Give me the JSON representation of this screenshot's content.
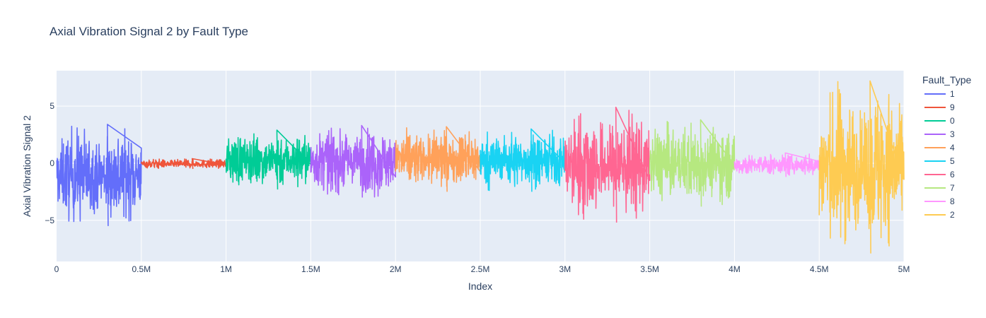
{
  "chart_data": {
    "type": "line",
    "title": "Axial Vibration Signal 2 by Fault Type",
    "xlabel": "Index",
    "ylabel": "Axial Vibration Signal 2",
    "xlim": [
      0,
      5000000
    ],
    "ylim": [
      -8.6,
      8.1
    ],
    "x_ticks": [
      {
        "value": 0,
        "label": "0"
      },
      {
        "value": 500000,
        "label": "0.5M"
      },
      {
        "value": 1000000,
        "label": "1M"
      },
      {
        "value": 1500000,
        "label": "1.5M"
      },
      {
        "value": 2000000,
        "label": "2M"
      },
      {
        "value": 2500000,
        "label": "2.5M"
      },
      {
        "value": 3000000,
        "label": "3M"
      },
      {
        "value": 3500000,
        "label": "3.5M"
      },
      {
        "value": 4000000,
        "label": "4M"
      },
      {
        "value": 4500000,
        "label": "4.5M"
      },
      {
        "value": 5000000,
        "label": "5M"
      }
    ],
    "y_ticks": [
      {
        "value": 5,
        "label": "5"
      },
      {
        "value": 0,
        "label": "0"
      },
      {
        "value": -5,
        "label": "−5"
      }
    ],
    "grid": true,
    "plot_bgcolor": "#E5ECF6",
    "legend_title": "Fault_Type",
    "legend_position": "right",
    "series": [
      {
        "name": "1",
        "color": "#636EFA",
        "x_range": [
          0,
          500000
        ],
        "y_min": -5.5,
        "y_max": 3.4
      },
      {
        "name": "9",
        "color": "#EF553B",
        "x_range": [
          500000,
          1000000
        ],
        "y_min": -0.5,
        "y_max": 0.4
      },
      {
        "name": "0",
        "color": "#00CC96",
        "x_range": [
          1000000,
          1500000
        ],
        "y_min": -2.3,
        "y_max": 2.9
      },
      {
        "name": "3",
        "color": "#AB63FA",
        "x_range": [
          1500000,
          2000000
        ],
        "y_min": -3.0,
        "y_max": 3.3
      },
      {
        "name": "4",
        "color": "#FFA15A",
        "x_range": [
          2000000,
          2500000
        ],
        "y_min": -2.5,
        "y_max": 3.2
      },
      {
        "name": "5",
        "color": "#19D3F3",
        "x_range": [
          2500000,
          3000000
        ],
        "y_min": -2.5,
        "y_max": 3.0
      },
      {
        "name": "6",
        "color": "#FF6692",
        "x_range": [
          3000000,
          3500000
        ],
        "y_min": -5.2,
        "y_max": 4.9
      },
      {
        "name": "7",
        "color": "#B6E880",
        "x_range": [
          3500000,
          4000000
        ],
        "y_min": -3.8,
        "y_max": 3.8
      },
      {
        "name": "8",
        "color": "#FF97FF",
        "x_range": [
          4000000,
          4500000
        ],
        "y_min": -1.2,
        "y_max": 0.9
      },
      {
        "name": "2",
        "color": "#FECB52",
        "x_range": [
          4500000,
          5000000
        ],
        "y_min": -7.9,
        "y_max": 7.2
      }
    ]
  }
}
